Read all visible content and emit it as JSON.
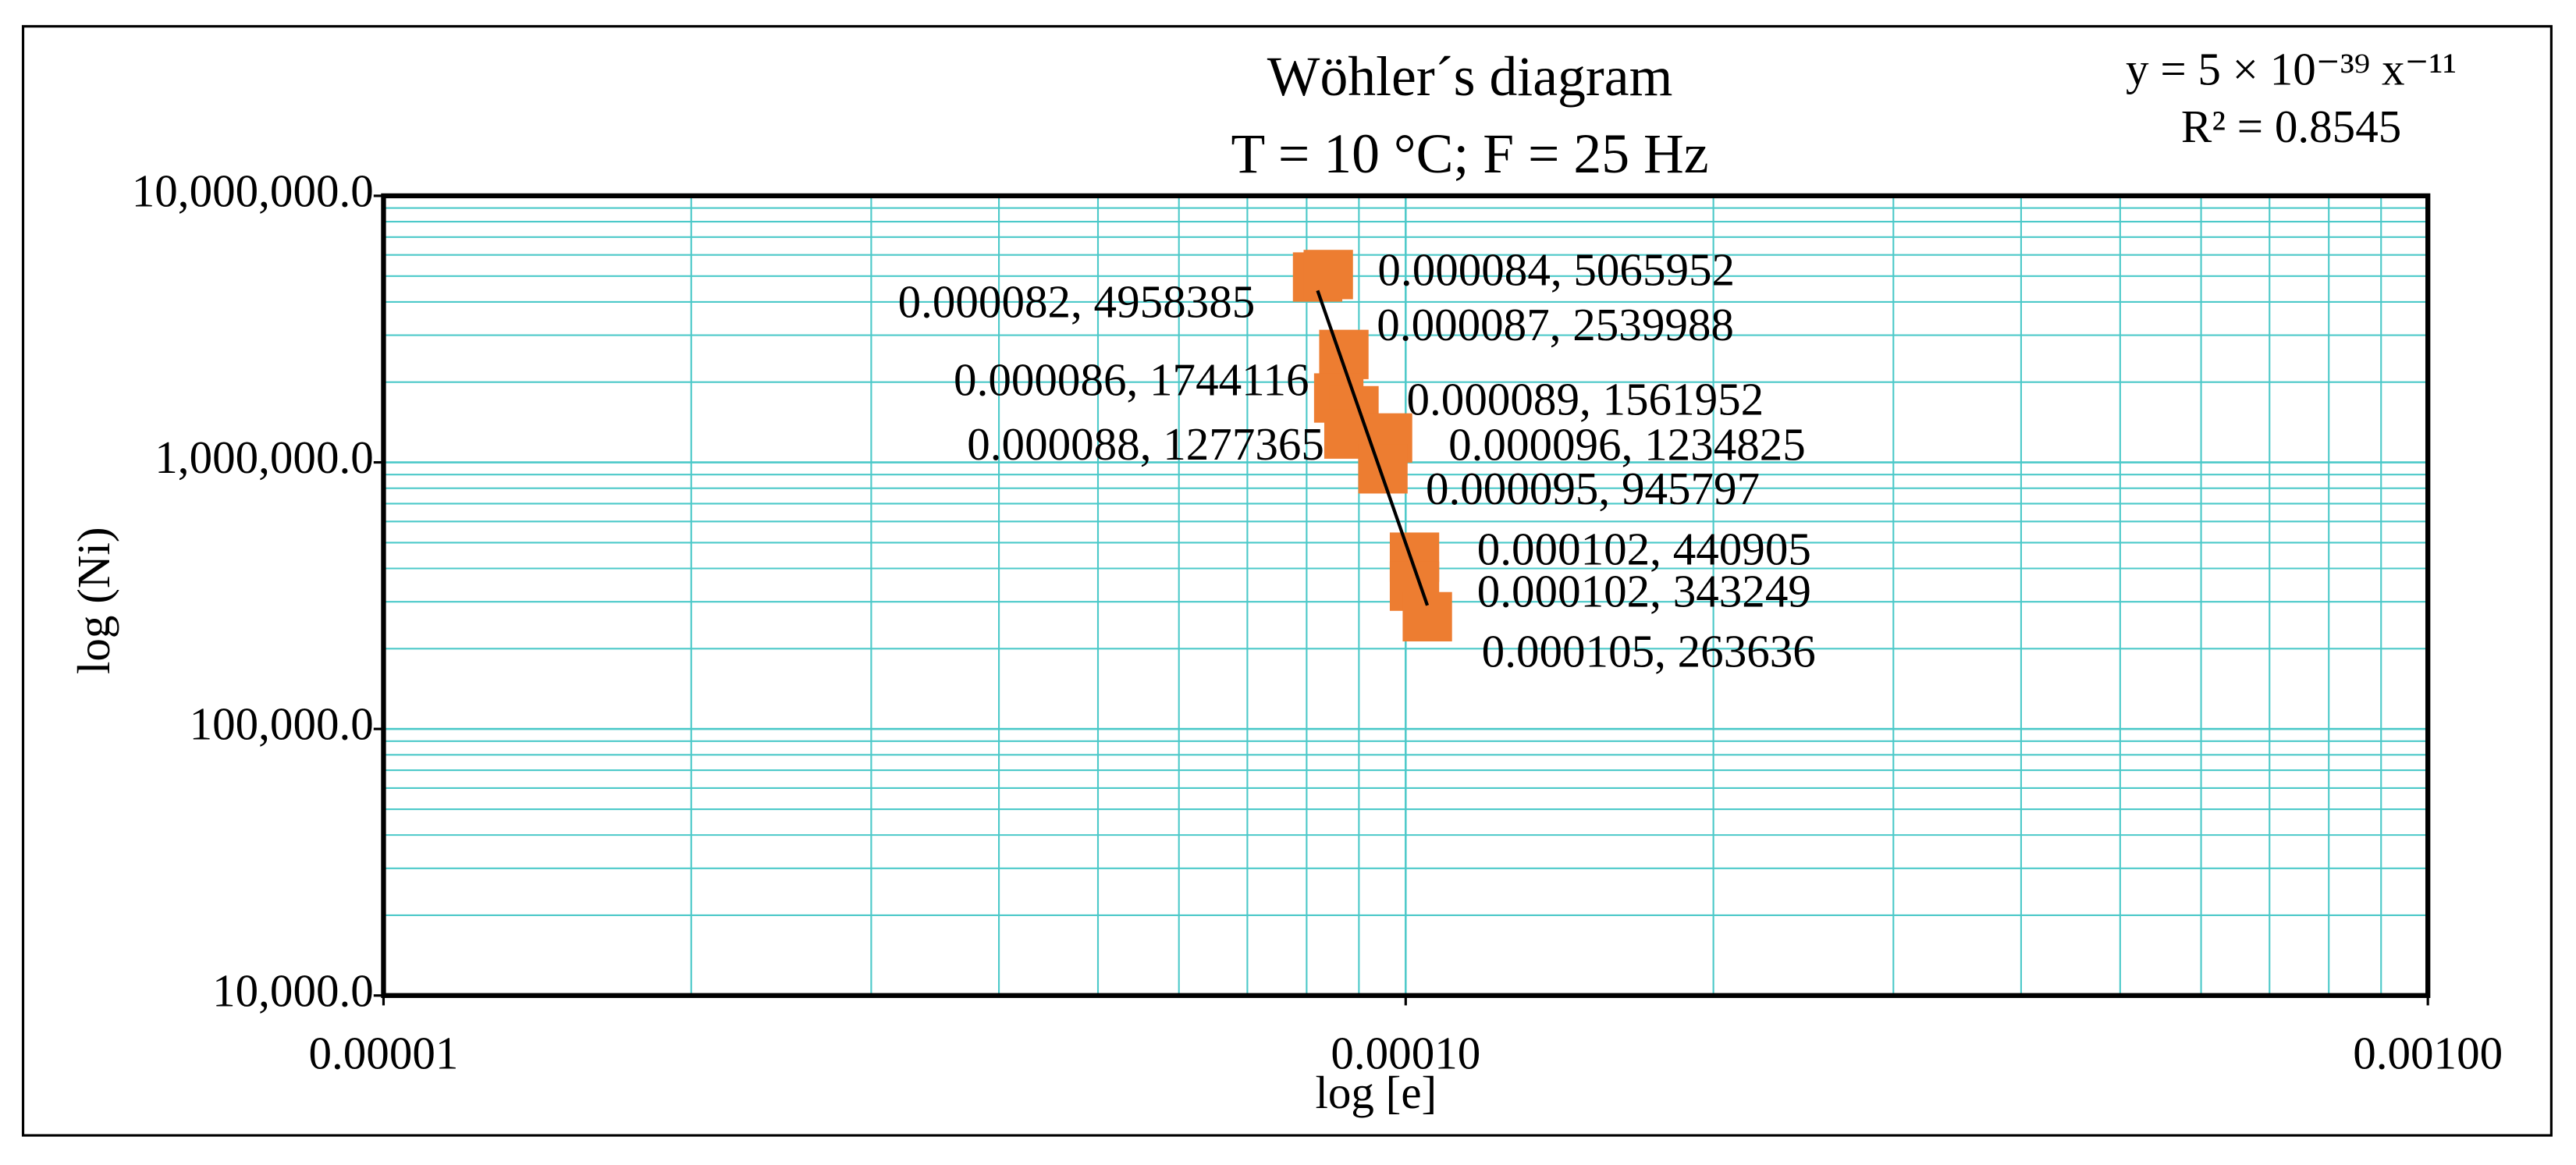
{
  "chart_data": {
    "type": "scatter",
    "title": "Wöhler´s diagram",
    "subtitle": "T = 10 °C; F = 25 Hz",
    "x_label": "log [e]",
    "y_label": "log (Ni)",
    "annotations": [
      "y = 5 × 10⁻³⁹ x⁻¹¹",
      "R² = 0.8545"
    ],
    "x": [
      8.2e-05,
      8.4e-05,
      8.7e-05,
      8.6e-05,
      8.9e-05,
      8.8e-05,
      9.6e-05,
      9.5e-05,
      0.000102,
      0.000102,
      0.000105
    ],
    "values": [
      4958385,
      5065952,
      2539988,
      1744116,
      1561952,
      1277365,
      1234825,
      945797,
      440905,
      343249,
      263636
    ],
    "value_labels": [
      "0.000082, 4958385",
      "0.000084, 5065952",
      "0.000087, 2539988",
      "0.000086, 1744116",
      "0.000089, 1561952",
      "0.000088, 1277365",
      "0.000096, 1234825",
      "0.000095, 945797",
      "0.000102, 440905",
      "0.000102, 343249",
      "0.000105, 263636"
    ],
    "color": "#ed7d31",
    "trendline_color": "#000000",
    "grid_color": "#4cc9c9",
    "xscale": "log",
    "yscale": "log",
    "grid": true,
    "xlim": [
      1e-05,
      0.001
    ],
    "xticks": [
      {
        "value": 1e-05,
        "label": "0.00001"
      },
      {
        "value": 0.0001,
        "label": "0.00010"
      },
      {
        "value": 0.001,
        "label": "0.00100"
      }
    ],
    "ylim": [
      10000,
      10000000
    ],
    "yticks": [
      {
        "value": 10000,
        "label": "10,000.0"
      },
      {
        "value": 100000,
        "label": "100,000.0"
      },
      {
        "value": 1000000,
        "label": "1,000,000.0"
      },
      {
        "value": 10000000,
        "label": "10,000,000.0"
      }
    ]
  }
}
